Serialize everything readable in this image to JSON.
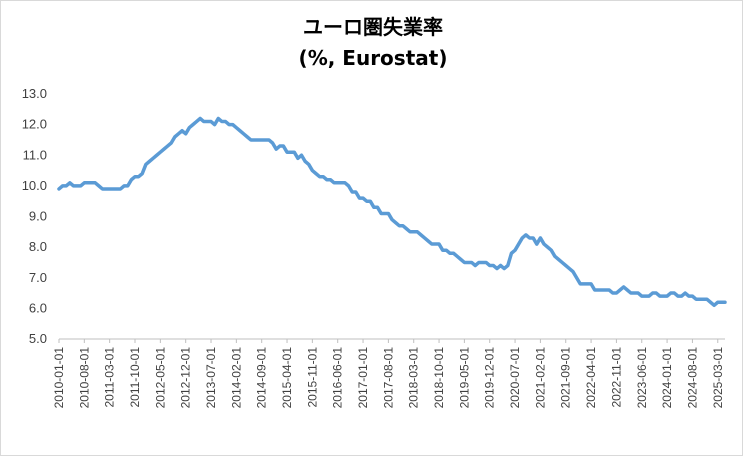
{
  "chart_data": {
    "type": "line",
    "title": "ユーロ圏失業率",
    "subtitle": "(%, Eurostat)",
    "ylim": [
      5.0,
      13.0
    ],
    "yticks": [
      "5.0",
      "6.0",
      "7.0",
      "8.0",
      "9.0",
      "10.0",
      "11.0",
      "12.0",
      "13.0"
    ],
    "xticks": [
      "2010-01-01",
      "2010-08-01",
      "2011-03-01",
      "2011-10-01",
      "2012-05-01",
      "2012-12-01",
      "2013-07-01",
      "2014-02-01",
      "2014-09-01",
      "2015-04-01",
      "2015-11-01",
      "2016-06-01",
      "2017-01-01",
      "2017-08-01",
      "2018-03-01",
      "2018-10-01",
      "2019-05-01",
      "2019-12-01",
      "2020-07-01",
      "2021-02-01",
      "2021-09-01",
      "2022-04-01",
      "2022-11-01",
      "2023-06-01",
      "2024-01-01",
      "2024-08-01",
      "2025-03-01"
    ],
    "grid": false,
    "legend": "none",
    "line_color": "#5b9bd5",
    "series": [
      {
        "x_start": "2010-01",
        "frequency": "monthly",
        "values": [
          9.9,
          10.0,
          10.0,
          10.1,
          10.0,
          10.0,
          10.0,
          10.1,
          10.1,
          10.1,
          10.1,
          10.0,
          9.9,
          9.9,
          9.9,
          9.9,
          9.9,
          9.9,
          10.0,
          10.0,
          10.2,
          10.3,
          10.3,
          10.4,
          10.7,
          10.8,
          10.9,
          11.0,
          11.1,
          11.2,
          11.3,
          11.4,
          11.6,
          11.7,
          11.8,
          11.7,
          11.9,
          12.0,
          12.1,
          12.2,
          12.1,
          12.1,
          12.1,
          12.0,
          12.2,
          12.1,
          12.1,
          12.0,
          12.0,
          11.9,
          11.8,
          11.7,
          11.6,
          11.5,
          11.5,
          11.5,
          11.5,
          11.5,
          11.5,
          11.4,
          11.2,
          11.3,
          11.3,
          11.1,
          11.1,
          11.1,
          10.9,
          11.0,
          10.8,
          10.7,
          10.5,
          10.4,
          10.3,
          10.3,
          10.2,
          10.2,
          10.1,
          10.1,
          10.1,
          10.1,
          10.0,
          9.8,
          9.8,
          9.6,
          9.6,
          9.5,
          9.5,
          9.3,
          9.3,
          9.1,
          9.1,
          9.1,
          8.9,
          8.8,
          8.7,
          8.7,
          8.6,
          8.5,
          8.5,
          8.5,
          8.4,
          8.3,
          8.2,
          8.1,
          8.1,
          8.1,
          7.9,
          7.9,
          7.8,
          7.8,
          7.7,
          7.6,
          7.5,
          7.5,
          7.5,
          7.4,
          7.5,
          7.5,
          7.5,
          7.4,
          7.4,
          7.3,
          7.4,
          7.3,
          7.4,
          7.8,
          7.9,
          8.1,
          8.3,
          8.4,
          8.3,
          8.3,
          8.1,
          8.3,
          8.1,
          8.0,
          7.9,
          7.7,
          7.6,
          7.5,
          7.4,
          7.3,
          7.2,
          7.0,
          6.8,
          6.8,
          6.8,
          6.8,
          6.6,
          6.6,
          6.6,
          6.6,
          6.6,
          6.5,
          6.5,
          6.6,
          6.7,
          6.6,
          6.5,
          6.5,
          6.5,
          6.4,
          6.4,
          6.4,
          6.5,
          6.5,
          6.4,
          6.4,
          6.4,
          6.5,
          6.5,
          6.4,
          6.4,
          6.5,
          6.4,
          6.4,
          6.3,
          6.3,
          6.3,
          6.3,
          6.2,
          6.1,
          6.2,
          6.2,
          6.2
        ]
      }
    ]
  }
}
